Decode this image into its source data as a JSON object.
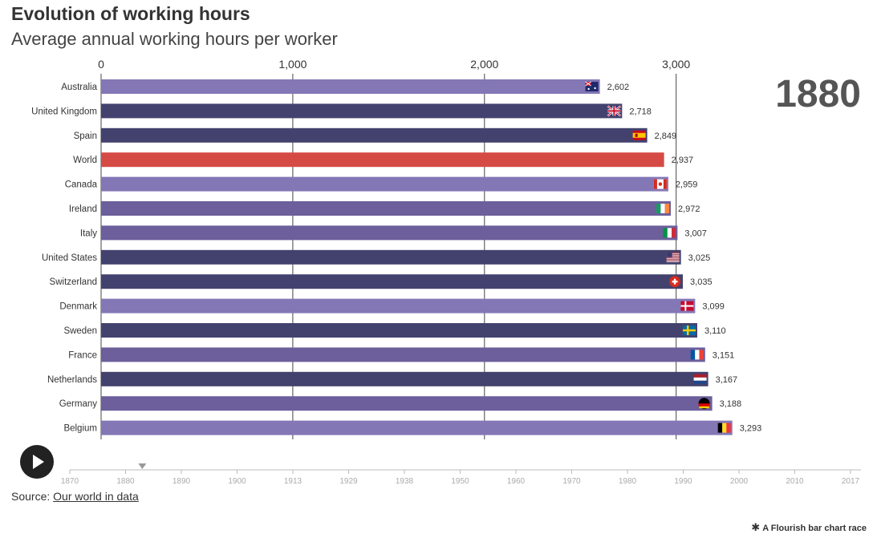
{
  "title": "Evolution of working hours",
  "subtitle": "Average annual working hours per worker",
  "current_year": "1880",
  "source_label": "Source:",
  "source_link": "Our world in data",
  "credit": "A Flourish bar chart race",
  "credit_icon": "flourish-asterisk-icon",
  "timeline": {
    "ticks": [
      "1870",
      "1880",
      "1890",
      "1900",
      "1913",
      "1929",
      "1938",
      "1950",
      "1960",
      "1970",
      "1980",
      "1990",
      "2000",
      "2010",
      "2017"
    ],
    "current": "1880"
  },
  "colors": {
    "world": "#d64a45",
    "light": "#8477b6",
    "mid": "#6c5f9c",
    "dark": "#43426e",
    "gridline": "#444444",
    "timeline": "#bbbbbb"
  },
  "chart_data": {
    "type": "bar",
    "orientation": "horizontal",
    "year": "1880",
    "categories": [
      "Australia",
      "United Kingdom",
      "Spain",
      "World",
      "Canada",
      "Ireland",
      "Italy",
      "United States",
      "Switzerland",
      "Denmark",
      "Sweden",
      "France",
      "Netherlands",
      "Germany",
      "Belgium"
    ],
    "values": [
      2602,
      2718,
      2849,
      2937,
      2959,
      2972,
      3007,
      3025,
      3035,
      3099,
      3110,
      3151,
      3167,
      3188,
      3293
    ],
    "value_labels": [
      "2,602",
      "2,718",
      "2,849",
      "2,937",
      "2,959",
      "2,972",
      "3,007",
      "3,025",
      "3,035",
      "3,099",
      "3,110",
      "3,151",
      "3,167",
      "3,188",
      "3,293"
    ],
    "bar_shades": [
      "light",
      "dark",
      "dark",
      "world",
      "light",
      "mid",
      "mid",
      "dark",
      "dark",
      "light",
      "dark",
      "mid",
      "dark",
      "mid",
      "light"
    ],
    "flags": [
      "australia-flag-icon",
      "uk-flag-icon",
      "spain-flag-icon",
      "",
      "canada-flag-icon",
      "ireland-flag-icon",
      "italy-flag-icon",
      "usa-flag-icon",
      "switzerland-flag-icon",
      "denmark-flag-icon",
      "sweden-flag-icon",
      "france-flag-icon",
      "netherlands-flag-icon",
      "germany-flag-icon",
      "belgium-flag-icon"
    ],
    "x_ticks": [
      0,
      1000,
      2000,
      3000
    ],
    "x_tick_labels": [
      "0",
      "1,000",
      "2,000",
      "3,000"
    ],
    "xlim": [
      0,
      3293
    ],
    "xlabel": "",
    "ylabel": "",
    "grid": true
  }
}
